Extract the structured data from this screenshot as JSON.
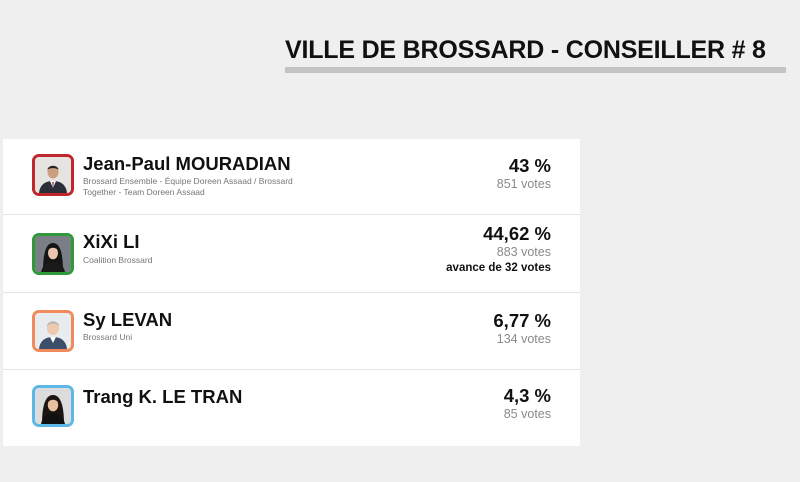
{
  "header": {
    "title": "VILLE DE BROSSARD - CONSEILLER # 8"
  },
  "candidates": [
    {
      "name": "Jean-Paul MOURADIAN",
      "party": "Brossard Ensemble - Équipe Doreen Assaad / Brossard Together - Team Doreen Assaad",
      "percent": "43 %",
      "votes": "851 votes",
      "party_color": "#c0272d"
    },
    {
      "name": "XiXi LI",
      "party": "Coalition Brossard",
      "percent": "44,62 %",
      "votes": "883 votes",
      "lead": "avance de 32 votes",
      "party_color": "#2e9a3a"
    },
    {
      "name": "Sy LEVAN",
      "party": "Brossard Uni",
      "percent": "6,77 %",
      "votes": "134 votes",
      "party_color": "#f08a5d"
    },
    {
      "name": "Trang K. LE TRAN",
      "party": "",
      "percent": "4,3 %",
      "votes": "85 votes",
      "party_color": "#5cb8e6"
    }
  ]
}
